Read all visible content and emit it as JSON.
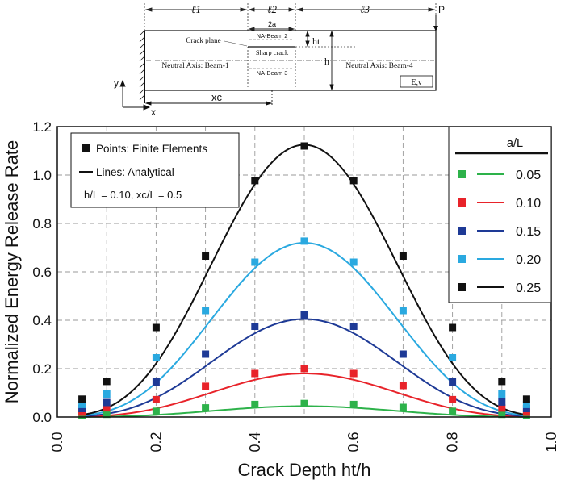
{
  "schematic": {
    "l1": "ℓ1",
    "l2": "ℓ2",
    "l3": "ℓ3",
    "two_a": "2a",
    "ht": "ht",
    "h": "h",
    "p": "P",
    "crack_plane": "Crack plane",
    "na_beam2": "NA-Beam 2",
    "sharp_crack": "Sharp crack",
    "na_beam3": "NA-Beam 3",
    "na_beam1": "Neutral Axis: Beam-1",
    "na_beam4": "Neutral Axis: Beam-4",
    "material": "E,ν",
    "y_axis": "y",
    "x_axis": "x",
    "xc": "xc"
  },
  "legend_left": {
    "points": "Points: Finite Elements",
    "lines": "Lines:   Analytical",
    "params": "h/L = 0.10, xc/L = 0.5"
  },
  "legend_right": {
    "title": "a/L"
  },
  "colors": {
    "green": "#2db24a",
    "red": "#e8232a",
    "navy": "#1e3a96",
    "cyan": "#2aa9e0",
    "black": "#111111"
  },
  "chart_data": {
    "type": "scatter",
    "xlabel": "Crack Depth ht/h",
    "ylabel": "Normalized Energy Release Rate",
    "xlim": [
      0.0,
      1.0
    ],
    "ylim": [
      0.0,
      1.2
    ],
    "xticks": [
      "0.0",
      "0.2",
      "0.4",
      "0.6",
      "0.8",
      "1.0"
    ],
    "yticks": [
      "0.0",
      "0.2",
      "0.4",
      "0.6",
      "0.8",
      "1.0",
      "1.2"
    ],
    "grid": true,
    "x": [
      0.05,
      0.1,
      0.2,
      0.3,
      0.4,
      0.5,
      0.6,
      0.7,
      0.8,
      0.9,
      0.95
    ],
    "series": [
      {
        "name": "0.05",
        "color": "#2db24a",
        "points": [
          0.006,
          0.011,
          0.024,
          0.038,
          0.052,
          0.056,
          0.052,
          0.04,
          0.024,
          0.011,
          0.006
        ],
        "peak": 0.045
      },
      {
        "name": "0.10",
        "color": "#e8232a",
        "points": [
          0.02,
          0.038,
          0.072,
          0.127,
          0.18,
          0.2,
          0.18,
          0.13,
          0.072,
          0.037,
          0.02
        ],
        "peak": 0.18
      },
      {
        "name": "0.15",
        "color": "#1e3a96",
        "points": [
          0.035,
          0.06,
          0.145,
          0.26,
          0.375,
          0.423,
          0.375,
          0.26,
          0.145,
          0.062,
          0.035
        ],
        "peak": 0.405
      },
      {
        "name": "0.20",
        "color": "#2aa9e0",
        "points": [
          0.052,
          0.095,
          0.245,
          0.44,
          0.64,
          0.727,
          0.64,
          0.44,
          0.245,
          0.095,
          0.052
        ],
        "peak": 0.72
      },
      {
        "name": "0.25",
        "color": "#111111",
        "points": [
          0.074,
          0.147,
          0.37,
          0.665,
          0.977,
          1.12,
          0.977,
          0.665,
          0.37,
          0.147,
          0.074
        ],
        "peak": 1.125
      }
    ]
  }
}
